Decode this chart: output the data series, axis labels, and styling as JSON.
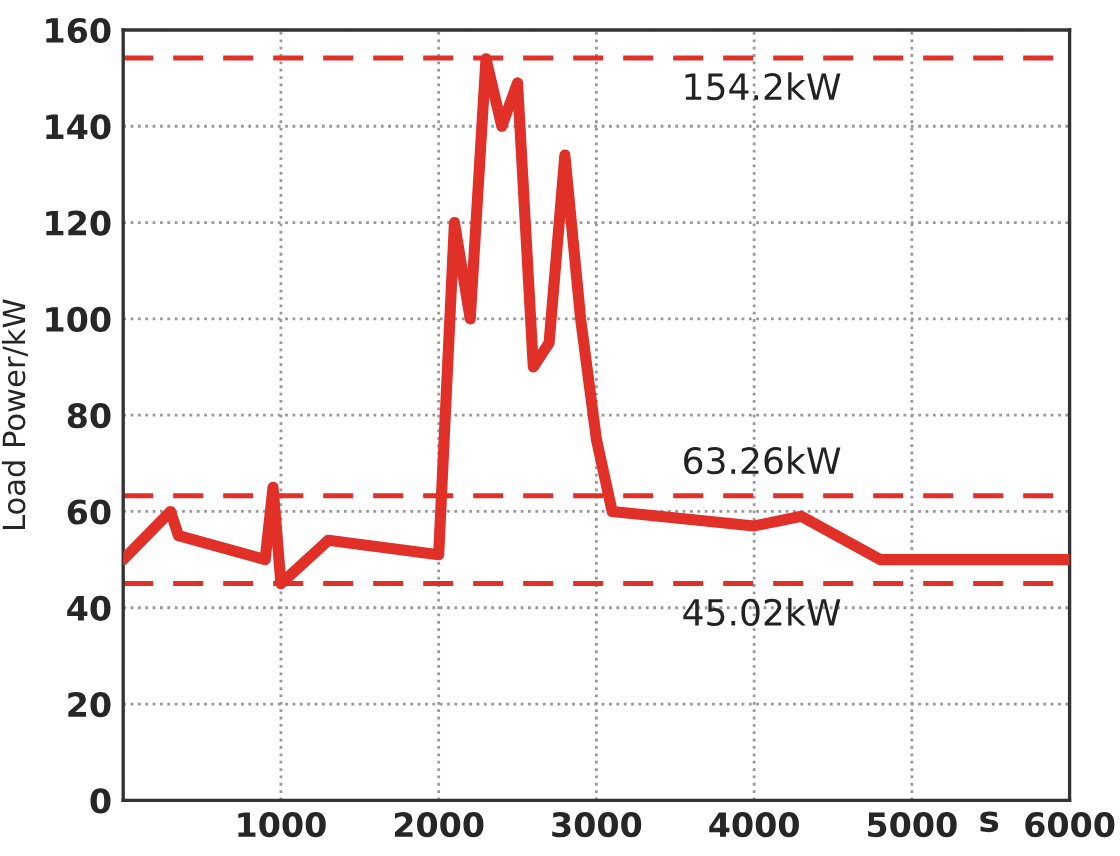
{
  "chart_data": {
    "type": "line",
    "xlabel": "s",
    "ylabel": "Load Power/kW",
    "x": [
      0,
      300,
      350,
      900,
      950,
      1000,
      1300,
      2000,
      2100,
      2200,
      2300,
      2400,
      2500,
      2600,
      2700,
      2800,
      2900,
      3000,
      3100,
      4000,
      4300,
      4800,
      6000
    ],
    "series": [
      {
        "color": "#e03028",
        "values": [
          50,
          60,
          55,
          50,
          65,
          45,
          54,
          51,
          120,
          100,
          154,
          140,
          149,
          90,
          95,
          134,
          100,
          75,
          60,
          57,
          59,
          50,
          50
        ]
      }
    ],
    "xlim": [
      0,
      6000
    ],
    "ylim": [
      0,
      160
    ],
    "xticks": [
      {
        "value": 0,
        "label": null
      },
      1000,
      2000,
      3000,
      4000,
      5000,
      6000
    ],
    "yticks": [
      0,
      20,
      40,
      60,
      80,
      100,
      120,
      140,
      160
    ],
    "grid": true,
    "line_style": "solid",
    "marker": "none",
    "ref_lines": [
      {
        "axis": "y",
        "value": 154.2,
        "label": "154.2kW",
        "color": "#e03028",
        "line_style": "dashed"
      },
      {
        "axis": "y",
        "value": 63.26,
        "label": "63.26kW",
        "color": "#e03028",
        "line_style": "dashed"
      },
      {
        "axis": "y",
        "value": 45.02,
        "label": "45.02kW",
        "color": "#e03028",
        "line_style": "dashed"
      }
    ]
  }
}
